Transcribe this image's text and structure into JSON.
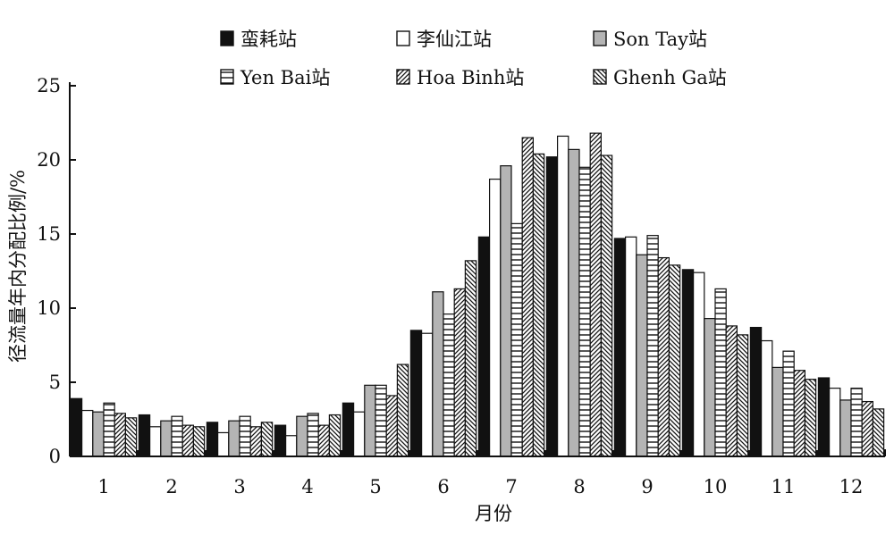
{
  "chart_data": {
    "type": "bar",
    "xlabel": "月份",
    "ylabel": "径流量年内分配比例/%",
    "ylim": [
      0,
      25
    ],
    "yticks": [
      0,
      5,
      10,
      15,
      20,
      25
    ],
    "grid": false,
    "legend_position": "top",
    "categories": [
      "1",
      "2",
      "3",
      "4",
      "5",
      "6",
      "7",
      "8",
      "9",
      "10",
      "11",
      "12"
    ],
    "series": [
      {
        "name": "蛮耗站",
        "pattern": "solid-black",
        "values": [
          3.9,
          2.8,
          2.3,
          2.1,
          3.6,
          8.5,
          14.8,
          20.2,
          14.7,
          12.6,
          8.7,
          5.3
        ]
      },
      {
        "name": "李仙江站",
        "pattern": "white",
        "values": [
          3.1,
          2.0,
          1.6,
          1.4,
          3.0,
          8.3,
          18.7,
          21.6,
          14.8,
          12.4,
          7.8,
          4.6
        ]
      },
      {
        "name": "Son Tay站",
        "pattern": "gray",
        "values": [
          3.0,
          2.4,
          2.4,
          2.7,
          4.8,
          11.1,
          19.6,
          20.7,
          13.6,
          9.3,
          6.0,
          3.8
        ]
      },
      {
        "name": "Yen Bai站",
        "pattern": "horizontal-lines",
        "values": [
          3.6,
          2.7,
          2.7,
          2.9,
          4.8,
          9.6,
          15.7,
          19.5,
          14.9,
          11.3,
          7.1,
          4.6
        ]
      },
      {
        "name": "Hoa Binh站",
        "pattern": "diagonal-up",
        "values": [
          2.9,
          2.1,
          2.0,
          2.1,
          4.1,
          11.3,
          21.5,
          21.8,
          13.4,
          8.8,
          5.8,
          3.7
        ]
      },
      {
        "name": "Ghenh Ga站",
        "pattern": "diagonal-down",
        "values": [
          2.6,
          2.0,
          2.3,
          2.8,
          6.2,
          13.2,
          20.4,
          20.3,
          12.9,
          8.2,
          5.2,
          3.2
        ]
      }
    ]
  }
}
